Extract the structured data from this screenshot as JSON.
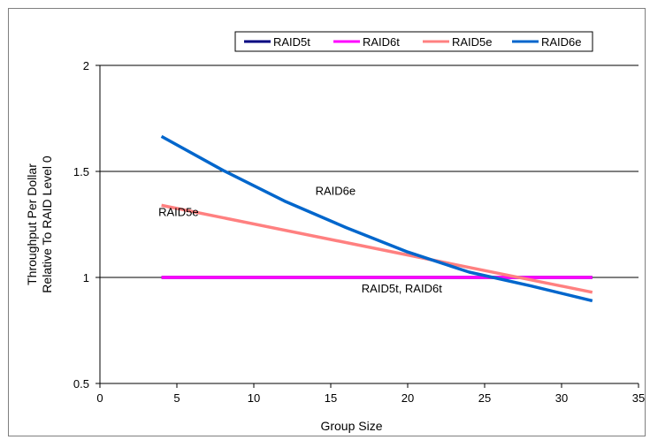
{
  "chart_data": {
    "type": "line",
    "title": "",
    "xlabel": "Group Size",
    "ylabel_lines": [
      "Throughput Per Dollar",
      "Relative To RAID Level 0"
    ],
    "xlim": [
      0,
      35
    ],
    "ylim": [
      0.5,
      2
    ],
    "x_ticks": [
      "0",
      "5",
      "10",
      "15",
      "20",
      "25",
      "30",
      "35"
    ],
    "y_ticks": [
      "0.5",
      "1",
      "1.5",
      "2"
    ],
    "grid": "horizontal",
    "legend_position": "top-right",
    "series": [
      {
        "name": "RAID5t",
        "color": "#000080",
        "x": [
          4,
          32
        ],
        "y": [
          1.0,
          1.0
        ]
      },
      {
        "name": "RAID6t",
        "color": "#ff00ff",
        "x": [
          4,
          32
        ],
        "y": [
          1.0,
          1.0
        ]
      },
      {
        "name": "RAID5e",
        "color": "#ff8080",
        "x": [
          4,
          32
        ],
        "y": [
          1.34,
          0.93
        ]
      },
      {
        "name": "RAID6e",
        "color": "#0066cc",
        "x": [
          4,
          8,
          12,
          16,
          20,
          24,
          28,
          32
        ],
        "y": [
          1.665,
          1.505,
          1.36,
          1.235,
          1.12,
          1.025,
          0.96,
          0.89
        ]
      }
    ],
    "annotations": [
      {
        "text": "RAID6e",
        "x": 14,
        "y": 1.39
      },
      {
        "text": "RAID5e",
        "x": 3.8,
        "y": 1.29
      },
      {
        "text": "RAID5t, RAID6t",
        "x": 17,
        "y": 0.93
      }
    ]
  }
}
